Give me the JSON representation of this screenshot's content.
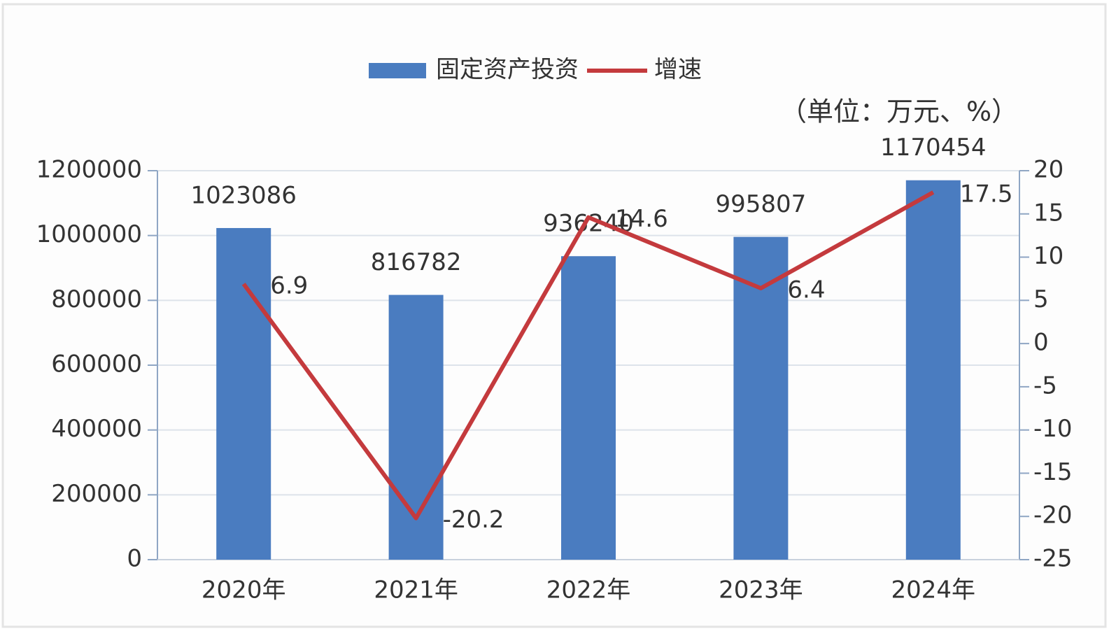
{
  "chart_data": {
    "type": "bar",
    "unit_note": "（单位：万元、%）",
    "categories": [
      "2020年",
      "2021年",
      "2022年",
      "2023年",
      "2024年"
    ],
    "series": [
      {
        "name": "固定资产投资",
        "type": "bar",
        "axis": "y",
        "color": "#4a7cc0",
        "values": [
          1023086,
          816782,
          936240,
          995807,
          1170454
        ]
      },
      {
        "name": "增速",
        "type": "line",
        "axis": "y2",
        "color": "#c43a3d",
        "values": [
          6.9,
          -20.2,
          14.6,
          6.4,
          17.5
        ]
      }
    ],
    "ylim": [
      0,
      1200000
    ],
    "yticks": [
      0,
      200000,
      400000,
      600000,
      800000,
      1000000,
      1200000
    ],
    "y2lim": [
      -25,
      20
    ],
    "y2ticks": [
      -25,
      -20,
      -15,
      -10,
      -5,
      0,
      5,
      10,
      15,
      20
    ],
    "grid": true,
    "legend": "top"
  }
}
